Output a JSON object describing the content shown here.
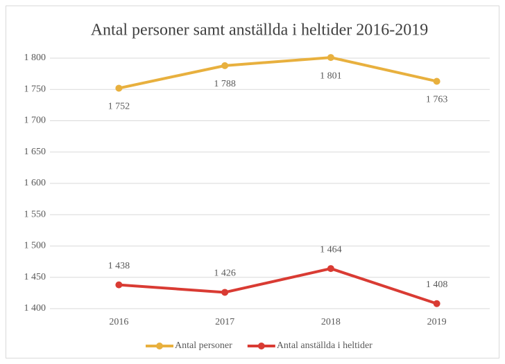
{
  "chart_data": {
    "type": "line",
    "title": "Antal personer samt anställda i heltider 2016-2019",
    "categories": [
      "2016",
      "2017",
      "2018",
      "2019"
    ],
    "series": [
      {
        "name": "Antal personer",
        "color": "#e8b03e",
        "values": [
          1752,
          1788,
          1801,
          1763
        ],
        "value_labels": [
          "1 752",
          "1 788",
          "1 801",
          "1 763"
        ]
      },
      {
        "name": "Antal anställda i heltider",
        "color": "#d93b33",
        "values": [
          1438,
          1426,
          1464,
          1408
        ],
        "value_labels": [
          "1 438",
          "1 426",
          "1 464",
          "1 408"
        ]
      }
    ],
    "ylim": [
      1400,
      1800
    ],
    "yticks": [
      {
        "value": 1400,
        "label": "1 400"
      },
      {
        "value": 1450,
        "label": "1 450"
      },
      {
        "value": 1500,
        "label": "1 500"
      },
      {
        "value": 1550,
        "label": "1 550"
      },
      {
        "value": 1600,
        "label": "1 600"
      },
      {
        "value": 1650,
        "label": "1 650"
      },
      {
        "value": 1700,
        "label": "1 700"
      },
      {
        "value": 1750,
        "label": "1 750"
      },
      {
        "value": 1800,
        "label": "1 800"
      }
    ],
    "grid": true
  }
}
